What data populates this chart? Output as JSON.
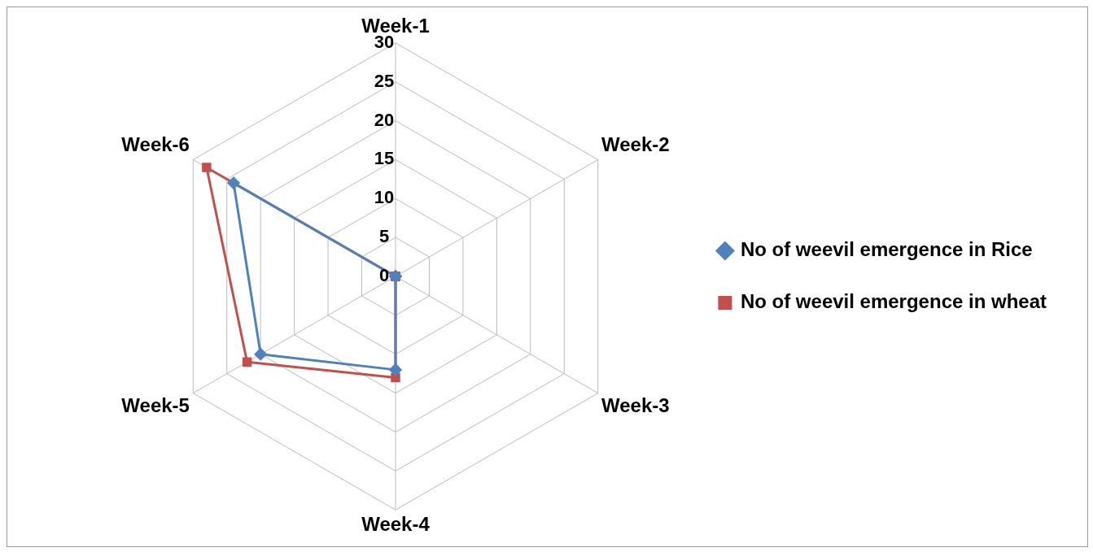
{
  "chart_data": {
    "type": "radar",
    "categories": [
      "Week-1",
      "Week-2",
      "Week-3",
      "Week-4",
      "Week-5",
      "Week-6"
    ],
    "series": [
      {
        "name": "No of weevil emergence in Rice",
        "color": "#4f81bd",
        "values": [
          0,
          0,
          0,
          12,
          20,
          24
        ]
      },
      {
        "name": "No of weevil emergence in wheat",
        "color": "#c0504d",
        "values": [
          0,
          0,
          0,
          13,
          22,
          28
        ]
      }
    ],
    "ylim": [
      0,
      30
    ],
    "yticks": [
      0,
      5,
      10,
      15,
      20,
      25,
      30
    ],
    "grid": true,
    "legend": "right",
    "marker": "square"
  }
}
